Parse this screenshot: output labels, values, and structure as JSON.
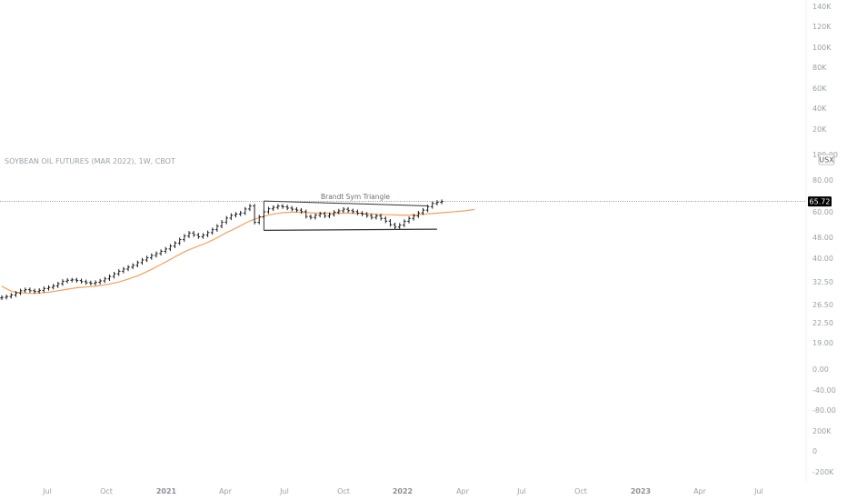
{
  "header": {
    "title": "SOYBEAN OIL FUTURES (MAR 2022), 1W, CBOT"
  },
  "price_scale": {
    "unit": "USX",
    "labels": [
      "140K",
      "120K",
      "100K",
      "80K",
      "60K",
      "40K",
      "20K",
      "100.00",
      "80.00",
      "60.00",
      "48.00",
      "40.00",
      "32.50",
      "26.50",
      "22.50",
      "19.00",
      "0.00",
      "-40.00",
      "-80.00",
      "200K",
      "0",
      "-200K"
    ],
    "last_price": "65.72"
  },
  "time_axis": {
    "labels": [
      {
        "text": "Jul",
        "year": false
      },
      {
        "text": "Oct",
        "year": false
      },
      {
        "text": "2021",
        "year": true
      },
      {
        "text": "Apr",
        "year": false
      },
      {
        "text": "Jul",
        "year": false
      },
      {
        "text": "Oct",
        "year": false
      },
      {
        "text": "2022",
        "year": true
      },
      {
        "text": "Apr",
        "year": false
      },
      {
        "text": "Jul",
        "year": false
      },
      {
        "text": "Oct",
        "year": false
      },
      {
        "text": "2023",
        "year": true
      },
      {
        "text": "Apr",
        "year": false
      },
      {
        "text": "Jul",
        "year": false
      }
    ]
  },
  "annotation": {
    "pattern_label": "Brandt Sym Triangle"
  },
  "colors": {
    "bars": "#1a1a1a",
    "moving_average": "#f5a05a",
    "annotation_line": "#333333",
    "price_badge": "#000000",
    "last_price_line": "#555555"
  },
  "chart_data": {
    "type": "ohlc",
    "timeframe": "1W",
    "x_unit": "weeks since start of visible range",
    "x_range": [
      0,
      121
    ],
    "y_scale": "log",
    "y_range": [
      19,
      100
    ],
    "series": [
      {
        "name": "price",
        "closes": [
          28.3,
          28.5,
          28.9,
          29.4,
          30.0,
          30.3,
          30.0,
          29.8,
          30.1,
          30.6,
          30.9,
          31.3,
          31.9,
          32.6,
          32.9,
          33.0,
          32.8,
          32.5,
          32.2,
          32.0,
          32.3,
          32.7,
          33.3,
          34.0,
          34.8,
          35.6,
          36.3,
          36.9,
          37.5,
          38.4,
          39.3,
          40.1,
          40.9,
          41.6,
          42.4,
          43.3,
          44.4,
          45.6,
          47.0,
          48.5,
          49.8,
          49.0,
          48.2,
          48.9,
          50.0,
          51.3,
          52.9,
          54.8,
          56.8,
          58.2,
          58.8,
          59.4,
          61.5,
          63.2,
          54.7,
          57.4,
          60.0,
          61.6,
          62.4,
          63.1,
          62.7,
          62.0,
          61.4,
          60.9,
          60.1,
          57.6,
          57.1,
          58.2,
          59.0,
          57.8,
          58.6,
          59.8,
          60.5,
          61.4,
          60.6,
          60.1,
          59.3,
          58.8,
          58.0,
          57.1,
          57.9,
          56.6,
          55.3,
          53.6,
          52.5,
          53.4,
          55.2,
          56.6,
          57.9,
          59.4,
          60.9,
          62.8,
          64.6,
          65.3,
          65.72
        ]
      },
      {
        "name": "moving average",
        "values": [
          31.2,
          30.5,
          29.9,
          29.6,
          29.5,
          29.4,
          29.3,
          29.3,
          29.4,
          29.5,
          29.6,
          29.8,
          30.0,
          30.2,
          30.4,
          30.6,
          30.8,
          30.9,
          31.0,
          31.1,
          31.2,
          31.4,
          31.6,
          31.8,
          32.1,
          32.4,
          32.8,
          33.2,
          33.7,
          34.2,
          34.8,
          35.5,
          36.2,
          37.0,
          37.8,
          38.6,
          39.5,
          40.4,
          41.3,
          42.2,
          43.0,
          43.7,
          44.4,
          45.1,
          45.9,
          46.8,
          47.8,
          48.9,
          50.0,
          51.0,
          52.0,
          53.1,
          54.3,
          55.4,
          56.2,
          57.0,
          57.7,
          58.3,
          58.8,
          59.2,
          59.5,
          59.7,
          59.8,
          59.8,
          59.7,
          59.6,
          59.5,
          59.4,
          59.3,
          59.3,
          59.3,
          59.3,
          59.3,
          59.3,
          59.3,
          59.2,
          59.2,
          59.1,
          59.0,
          58.9,
          58.7,
          58.6,
          58.5,
          58.5,
          58.4,
          58.3,
          58.3,
          58.3,
          58.4,
          58.5,
          58.7,
          58.9,
          59.1,
          59.3,
          59.5,
          59.7,
          59.9,
          60.1,
          60.3,
          60.6,
          60.9,
          61.2
        ]
      }
    ],
    "triangle": {
      "label": "Brandt Sym Triangle",
      "top": {
        "x": [
          56,
          91
        ],
        "y": [
          66.0,
          63.2
        ]
      },
      "bottom": {
        "x": [
          56,
          93
        ],
        "y": [
          51.0,
          51.5
        ]
      },
      "left": {
        "x": [
          56,
          56
        ],
        "y": [
          51.0,
          66.0
        ]
      }
    },
    "last_price": 65.72
  }
}
